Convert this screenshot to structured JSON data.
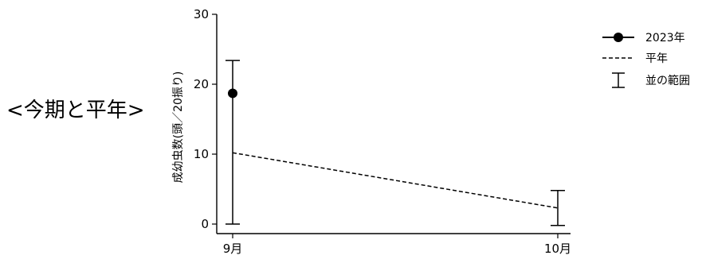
{
  "page_label": "<今期と平年>",
  "chart_data": {
    "type": "line",
    "title": "",
    "xlabel": "",
    "ylabel": "成幼虫数(頭／20振り)",
    "categories": [
      "9月",
      "10月"
    ],
    "ylim": [
      0,
      30
    ],
    "yticks": [
      0,
      10,
      20,
      30
    ],
    "series": [
      {
        "name": "2023年",
        "style": "marker",
        "color": "#000000",
        "values": [
          18.7,
          null
        ]
      },
      {
        "name": "平年",
        "style": "dashed",
        "color": "#000000",
        "values": [
          10.2,
          2.3
        ]
      }
    ],
    "range": {
      "name": "並の範囲",
      "intervals": [
        [
          0,
          23.4
        ],
        [
          -0.2,
          4.8
        ]
      ]
    },
    "legend_position": "top-right",
    "grid": false
  }
}
